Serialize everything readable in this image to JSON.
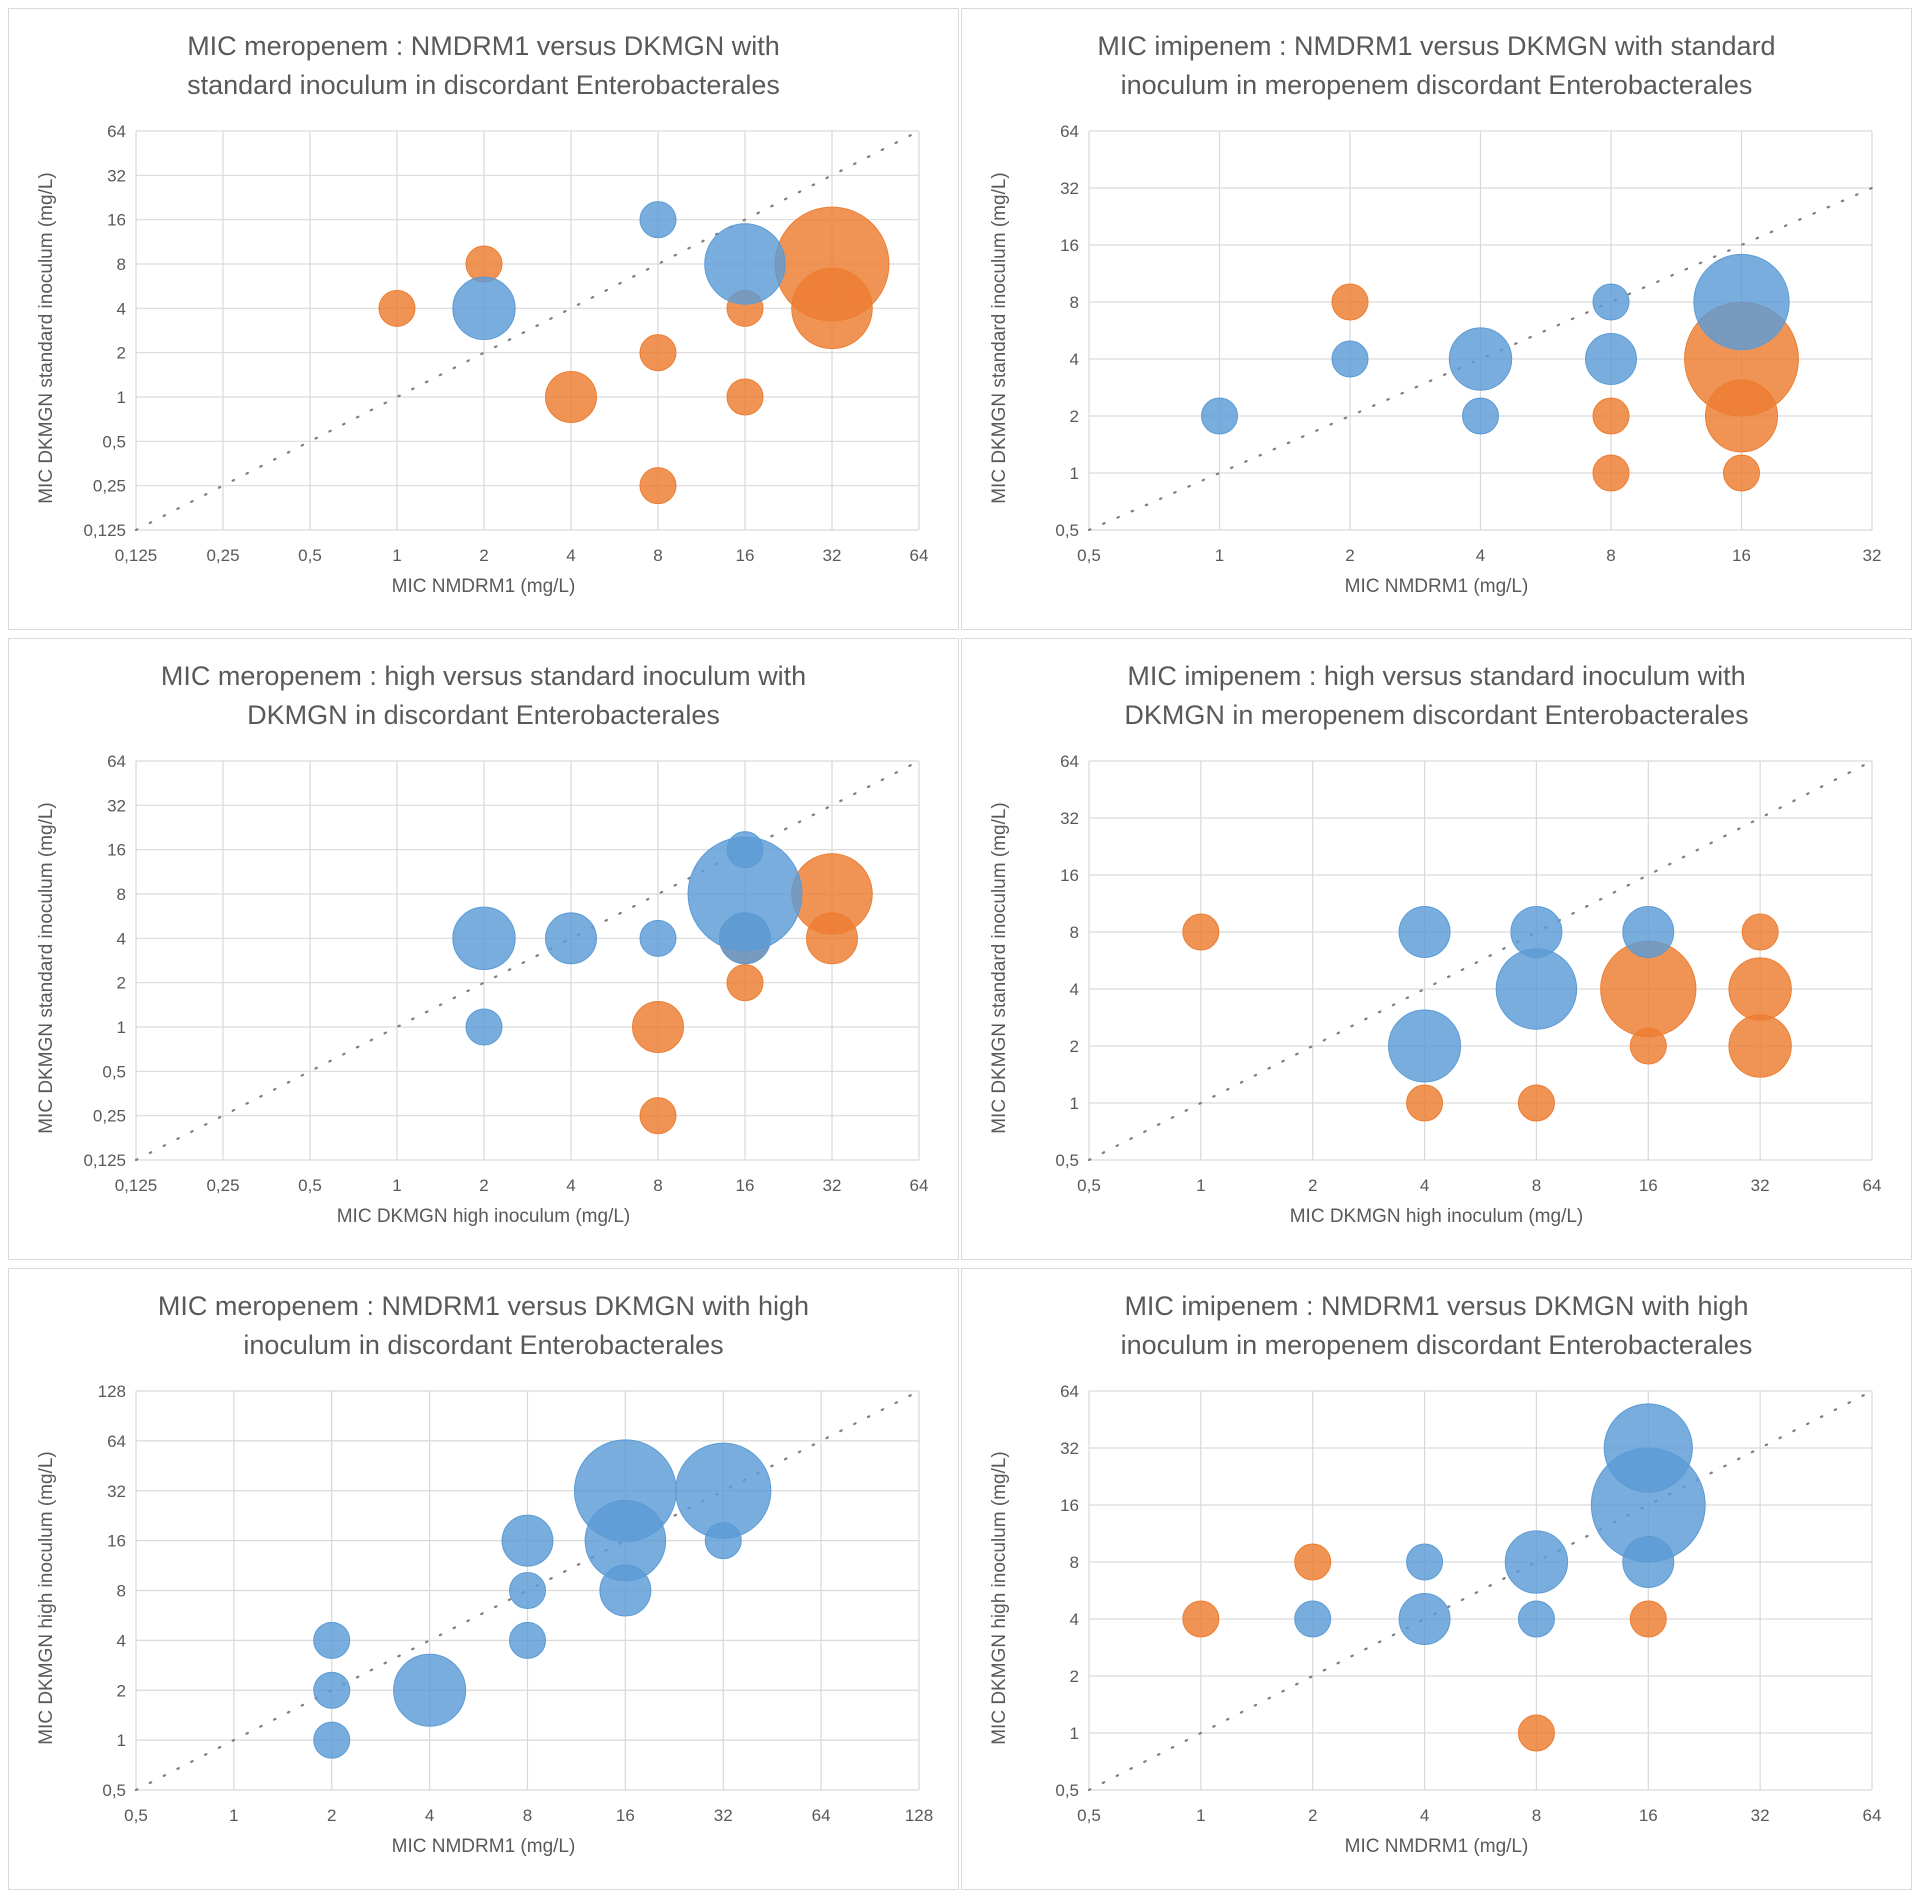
{
  "colors": {
    "orange": "#ed7d31",
    "blue": "#5b9bd5",
    "grid": "#d9d9d9",
    "text": "#595959",
    "diagonal": "#7f7f7f"
  },
  "chart_data": [
    {
      "type": "scatter",
      "variant": "bubble",
      "title": [
        "MIC meropenem : NMDRM1 versus DKMGN with",
        "standard inoculum in discordant Enterobacterales"
      ],
      "xlabel": "MIC NMDRM1 (mg/L)",
      "ylabel": "MIC DKMGN standard inoculum (mg/L)",
      "x_scale": "log2",
      "y_scale": "log2",
      "x_ticks": [
        "0,125",
        "0,25",
        "0,5",
        "1",
        "2",
        "4",
        "8",
        "16",
        "32",
        "64"
      ],
      "y_ticks": [
        "0,125",
        "0,25",
        "0,5",
        "1",
        "2",
        "4",
        "8",
        "16",
        "32",
        "64"
      ],
      "xlim": [
        0.125,
        64
      ],
      "ylim": [
        0.125,
        64
      ],
      "identity_line": true,
      "series": [
        {
          "name": "orange",
          "color": "#ed7d31",
          "points": [
            {
              "x": 1,
              "y": 4,
              "count": 1
            },
            {
              "x": 2,
              "y": 8,
              "count": 1
            },
            {
              "x": 4,
              "y": 1,
              "count": 2
            },
            {
              "x": 8,
              "y": 2,
              "count": 1
            },
            {
              "x": 8,
              "y": 0.25,
              "count": 1
            },
            {
              "x": 16,
              "y": 4,
              "count": 1
            },
            {
              "x": 16,
              "y": 1,
              "count": 1
            },
            {
              "x": 32,
              "y": 8,
              "count": 10
            },
            {
              "x": 32,
              "y": 4,
              "count": 5
            }
          ]
        },
        {
          "name": "blue",
          "color": "#5b9bd5",
          "points": [
            {
              "x": 2,
              "y": 4,
              "count": 3
            },
            {
              "x": 8,
              "y": 16,
              "count": 1
            },
            {
              "x": 16,
              "y": 8,
              "count": 5
            }
          ]
        }
      ]
    },
    {
      "type": "scatter",
      "variant": "bubble",
      "title": [
        "MIC imipenem : NMDRM1 versus DKMGN with standard",
        "inoculum in meropenem discordant Enterobacterales"
      ],
      "xlabel": "MIC NMDRM1 (mg/L)",
      "ylabel": "MIC DKMGN  standard inoculum (mg/L)",
      "x_scale": "log2",
      "y_scale": "log2",
      "x_ticks": [
        "0,5",
        "1",
        "2",
        "4",
        "8",
        "16",
        "32"
      ],
      "y_ticks": [
        "0,5",
        "1",
        "2",
        "4",
        "8",
        "16",
        "32",
        "64"
      ],
      "xlim": [
        0.5,
        32
      ],
      "ylim": [
        0.5,
        64
      ],
      "identity_line": true,
      "series": [
        {
          "name": "orange",
          "color": "#ed7d31",
          "points": [
            {
              "x": 2,
              "y": 8,
              "count": 1
            },
            {
              "x": 8,
              "y": 2,
              "count": 1
            },
            {
              "x": 8,
              "y": 1,
              "count": 1
            },
            {
              "x": 16,
              "y": 4,
              "count": 10
            },
            {
              "x": 16,
              "y": 2,
              "count": 4
            },
            {
              "x": 16,
              "y": 1,
              "count": 1
            }
          ]
        },
        {
          "name": "blue",
          "color": "#5b9bd5",
          "points": [
            {
              "x": 1,
              "y": 2,
              "count": 1
            },
            {
              "x": 2,
              "y": 4,
              "count": 1
            },
            {
              "x": 4,
              "y": 4,
              "count": 3
            },
            {
              "x": 4,
              "y": 2,
              "count": 1
            },
            {
              "x": 8,
              "y": 8,
              "count": 1
            },
            {
              "x": 8,
              "y": 4,
              "count": 2
            },
            {
              "x": 16,
              "y": 8,
              "count": 7
            }
          ]
        }
      ]
    },
    {
      "type": "scatter",
      "variant": "bubble",
      "title": [
        "MIC meropenem : high versus standard inoculum with",
        "DKMGN in discordant Enterobacterales"
      ],
      "xlabel": "MIC DKMGN high inoculum (mg/L)",
      "ylabel": "MIC DKMGN standard inoculum (mg/L)",
      "x_scale": "log2",
      "y_scale": "log2",
      "x_ticks": [
        "0,125",
        "0,25",
        "0,5",
        "1",
        "2",
        "4",
        "8",
        "16",
        "32",
        "64"
      ],
      "y_ticks": [
        "0,125",
        "0,25",
        "0,5",
        "1",
        "2",
        "4",
        "8",
        "16",
        "32",
        "64"
      ],
      "xlim": [
        0.125,
        64
      ],
      "ylim": [
        0.125,
        64
      ],
      "identity_line": true,
      "series": [
        {
          "name": "orange",
          "color": "#ed7d31",
          "points": [
            {
              "x": 8,
              "y": 1,
              "count": 2
            },
            {
              "x": 8,
              "y": 0.25,
              "count": 1
            },
            {
              "x": 16,
              "y": 4,
              "count": 2
            },
            {
              "x": 16,
              "y": 2,
              "count": 1
            },
            {
              "x": 32,
              "y": 8,
              "count": 5
            },
            {
              "x": 32,
              "y": 4,
              "count": 2
            }
          ]
        },
        {
          "name": "blue",
          "color": "#5b9bd5",
          "points": [
            {
              "x": 2,
              "y": 4,
              "count": 3
            },
            {
              "x": 2,
              "y": 1,
              "count": 1
            },
            {
              "x": 4,
              "y": 4,
              "count": 2
            },
            {
              "x": 8,
              "y": 4,
              "count": 1
            },
            {
              "x": 16,
              "y": 8,
              "count": 10
            },
            {
              "x": 16,
              "y": 16,
              "count": 1
            },
            {
              "x": 16,
              "y": 4,
              "count": 2
            }
          ]
        }
      ]
    },
    {
      "type": "scatter",
      "variant": "bubble",
      "title": [
        "MIC imipenem : high versus standard inoculum with",
        "DKMGN in meropenem discordant Enterobacterales"
      ],
      "xlabel": "MIC DKMGN high inoculum (mg/L)",
      "ylabel": "MIC DKMGN standard inoculum (mg/L)",
      "x_scale": "log2",
      "y_scale": "log2",
      "x_ticks": [
        "0,5",
        "1",
        "2",
        "4",
        "8",
        "16",
        "32",
        "64"
      ],
      "y_ticks": [
        "0,5",
        "1",
        "2",
        "4",
        "8",
        "16",
        "32",
        "64"
      ],
      "xlim": [
        0.5,
        64
      ],
      "ylim": [
        0.5,
        64
      ],
      "identity_line": true,
      "series": [
        {
          "name": "orange",
          "color": "#ed7d31",
          "points": [
            {
              "x": 1,
              "y": 8,
              "count": 1
            },
            {
              "x": 4,
              "y": 1,
              "count": 1
            },
            {
              "x": 8,
              "y": 1,
              "count": 1
            },
            {
              "x": 16,
              "y": 4,
              "count": 7
            },
            {
              "x": 16,
              "y": 2,
              "count": 1
            },
            {
              "x": 32,
              "y": 8,
              "count": 1
            },
            {
              "x": 32,
              "y": 4,
              "count": 3
            },
            {
              "x": 32,
              "y": 2,
              "count": 3
            }
          ]
        },
        {
          "name": "blue",
          "color": "#5b9bd5",
          "points": [
            {
              "x": 4,
              "y": 8,
              "count": 2
            },
            {
              "x": 4,
              "y": 2,
              "count": 4
            },
            {
              "x": 8,
              "y": 8,
              "count": 2
            },
            {
              "x": 8,
              "y": 4,
              "count": 5
            },
            {
              "x": 16,
              "y": 8,
              "count": 2
            }
          ]
        }
      ]
    },
    {
      "type": "scatter",
      "variant": "bubble",
      "title": [
        "MIC meropenem : NMDRM1 versus DKMGN with high",
        "inoculum in discordant Enterobacterales"
      ],
      "xlabel": "MIC NMDRM1 (mg/L)",
      "ylabel": "MIC DKMGN high inoculum (mg/L)",
      "x_scale": "log2",
      "y_scale": "log2",
      "x_ticks": [
        "0,5",
        "1",
        "2",
        "4",
        "8",
        "16",
        "32",
        "64",
        "128"
      ],
      "y_ticks": [
        "0,5",
        "1",
        "2",
        "4",
        "8",
        "16",
        "32",
        "64",
        "128"
      ],
      "xlim": [
        0.5,
        128
      ],
      "ylim": [
        0.5,
        128
      ],
      "identity_line": true,
      "series": [
        {
          "name": "blue",
          "color": "#5b9bd5",
          "points": [
            {
              "x": 2,
              "y": 4,
              "count": 1
            },
            {
              "x": 2,
              "y": 2,
              "count": 1
            },
            {
              "x": 2,
              "y": 1,
              "count": 1
            },
            {
              "x": 4,
              "y": 2,
              "count": 4
            },
            {
              "x": 8,
              "y": 16,
              "count": 2
            },
            {
              "x": 8,
              "y": 8,
              "count": 1
            },
            {
              "x": 8,
              "y": 4,
              "count": 1
            },
            {
              "x": 16,
              "y": 32,
              "count": 8
            },
            {
              "x": 16,
              "y": 16,
              "count": 5
            },
            {
              "x": 16,
              "y": 8,
              "count": 2
            },
            {
              "x": 32,
              "y": 32,
              "count": 7
            },
            {
              "x": 32,
              "y": 16,
              "count": 1
            }
          ]
        }
      ]
    },
    {
      "type": "scatter",
      "variant": "bubble",
      "title": [
        "MIC imipenem : NMDRM1 versus DKMGN with high",
        "inoculum in meropenem discordant Enterobacterales"
      ],
      "xlabel": "MIC NMDRM1 (mg/L)",
      "ylabel": "MIC DKMGN high inoculum (mg/L)",
      "x_scale": "log2",
      "y_scale": "log2",
      "x_ticks": [
        "0,5",
        "1",
        "2",
        "4",
        "8",
        "16",
        "32",
        "64"
      ],
      "y_ticks": [
        "0,5",
        "1",
        "2",
        "4",
        "8",
        "16",
        "32",
        "64"
      ],
      "xlim": [
        0.5,
        64
      ],
      "ylim": [
        0.5,
        64
      ],
      "identity_line": true,
      "series": [
        {
          "name": "orange",
          "color": "#ed7d31",
          "points": [
            {
              "x": 1,
              "y": 4,
              "count": 1
            },
            {
              "x": 2,
              "y": 8,
              "count": 1
            },
            {
              "x": 8,
              "y": 1,
              "count": 1
            },
            {
              "x": 16,
              "y": 4,
              "count": 1
            }
          ]
        },
        {
          "name": "blue",
          "color": "#5b9bd5",
          "points": [
            {
              "x": 2,
              "y": 4,
              "count": 1
            },
            {
              "x": 4,
              "y": 8,
              "count": 1
            },
            {
              "x": 4,
              "y": 4,
              "count": 2
            },
            {
              "x": 8,
              "y": 8,
              "count": 3
            },
            {
              "x": 8,
              "y": 4,
              "count": 1
            },
            {
              "x": 16,
              "y": 32,
              "count": 6
            },
            {
              "x": 16,
              "y": 16,
              "count": 10
            },
            {
              "x": 16,
              "y": 8,
              "count": 2
            }
          ]
        }
      ]
    }
  ]
}
